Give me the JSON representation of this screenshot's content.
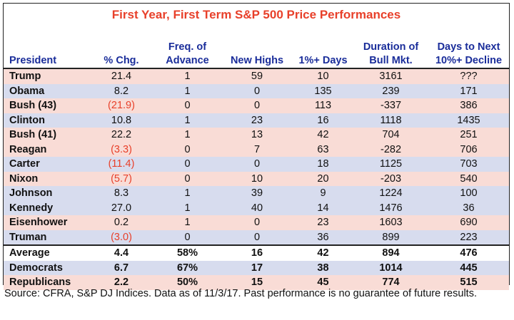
{
  "title": "First Year, First Term S&P 500 Price Performances",
  "headers": [
    {
      "line1": "",
      "line2": "President"
    },
    {
      "line1": "",
      "line2": "% Chg."
    },
    {
      "line1": "Freq. of",
      "line2": "Advance"
    },
    {
      "line1": "",
      "line2": "New Highs"
    },
    {
      "line1": "",
      "line2": "1%+ Days"
    },
    {
      "line1": "Duration of",
      "line2": "Bull Mkt."
    },
    {
      "line1": "Days to Next",
      "line2": "10%+ Decline"
    }
  ],
  "rows": [
    {
      "president": "Trump",
      "chg": "21.4",
      "neg": false,
      "freq": "1",
      "highs": "59",
      "days1": "10",
      "duration": "3161",
      "decline": "???",
      "color": "pink"
    },
    {
      "president": "Obama",
      "chg": "8.2",
      "neg": false,
      "freq": "1",
      "highs": "0",
      "days1": "135",
      "duration": "239",
      "decline": "171",
      "color": "blue"
    },
    {
      "president": "Bush (43)",
      "chg": "(21.9)",
      "neg": true,
      "freq": "0",
      "highs": "0",
      "days1": "113",
      "duration": "-337",
      "decline": "386",
      "color": "pink"
    },
    {
      "president": "Clinton",
      "chg": "10.8",
      "neg": false,
      "freq": "1",
      "highs": "23",
      "days1": "16",
      "duration": "1118",
      "decline": "1435",
      "color": "blue"
    },
    {
      "president": "Bush (41)",
      "chg": "22.2",
      "neg": false,
      "freq": "1",
      "highs": "13",
      "days1": "42",
      "duration": "704",
      "decline": "251",
      "color": "pink"
    },
    {
      "president": "Reagan",
      "chg": "(3.3)",
      "neg": true,
      "freq": "0",
      "highs": "7",
      "days1": "63",
      "duration": "-282",
      "decline": "706",
      "color": "pink"
    },
    {
      "president": "Carter",
      "chg": "(11.4)",
      "neg": true,
      "freq": "0",
      "highs": "0",
      "days1": "18",
      "duration": "1125",
      "decline": "703",
      "color": "blue"
    },
    {
      "president": "Nixon",
      "chg": "(5.7)",
      "neg": true,
      "freq": "0",
      "highs": "10",
      "days1": "20",
      "duration": "-203",
      "decline": "540",
      "color": "pink"
    },
    {
      "president": "Johnson",
      "chg": "8.3",
      "neg": false,
      "freq": "1",
      "highs": "39",
      "days1": "9",
      "duration": "1224",
      "decline": "100",
      "color": "blue"
    },
    {
      "president": "Kennedy",
      "chg": "27.0",
      "neg": false,
      "freq": "1",
      "highs": "40",
      "days1": "14",
      "duration": "1476",
      "decline": "36",
      "color": "blue"
    },
    {
      "president": "Eisenhower",
      "chg": "0.2",
      "neg": false,
      "freq": "1",
      "highs": "0",
      "days1": "23",
      "duration": "1603",
      "decline": "690",
      "color": "pink"
    },
    {
      "president": "Truman",
      "chg": "(3.0)",
      "neg": true,
      "freq": "0",
      "highs": "0",
      "days1": "36",
      "duration": "899",
      "decline": "223",
      "color": "blue"
    }
  ],
  "summary": [
    {
      "president": "Average",
      "chg": "4.4",
      "freq": "58%",
      "highs": "16",
      "days1": "42",
      "duration": "894",
      "decline": "476",
      "color": "white"
    },
    {
      "president": "Democrats",
      "chg": "6.7",
      "freq": "67%",
      "highs": "17",
      "days1": "38",
      "duration": "1014",
      "decline": "445",
      "color": "blue"
    },
    {
      "president": "Republicans",
      "chg": "2.2",
      "freq": "50%",
      "highs": "15",
      "days1": "45",
      "duration": "774",
      "decline": "515",
      "color": "pink"
    }
  ],
  "source": "Source: CFRA, S&P DJ Indices. Data as of 11/3/17. Past performance is no guarantee of future results.",
  "colors": {
    "title": "#e8402a",
    "header": "#1a2d9a",
    "negative": "#e8402a",
    "pink_row": "#f9dcd6",
    "blue_row": "#d7dcee"
  }
}
